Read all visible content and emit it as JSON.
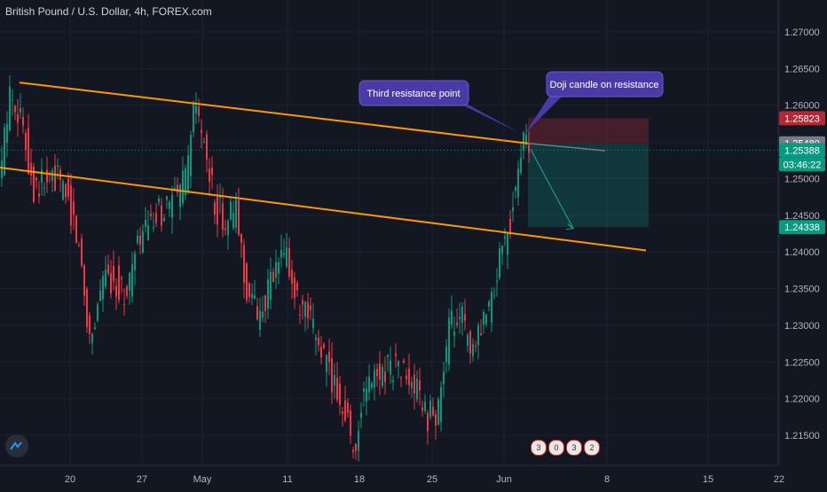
{
  "header": {
    "title": "British Pound / U.S. Dollar, 4h, FOREX.com"
  },
  "ideas": {
    "badges": [
      "3",
      "0",
      "3",
      "2"
    ]
  },
  "chart_data": {
    "type": "candlestick",
    "title": "British Pound / U.S. Dollar, 4h, FOREX.com",
    "y_range": [
      1.2112,
      1.2768
    ],
    "y_ticks": [
      "1.27000",
      "1.26500",
      "1.26000",
      "1.25500",
      "1.25000",
      "1.24500",
      "1.24000",
      "1.23500",
      "1.23000",
      "1.22500",
      "1.22000",
      "1.21500"
    ],
    "x_ticks": [
      "20",
      "27",
      "May",
      "11",
      "18",
      "25",
      "Jun",
      "8",
      "15",
      "22"
    ],
    "price_labels": [
      {
        "value": "1.25823",
        "color": "#b22833"
      },
      {
        "value": "1.25480",
        "color": "#787b86"
      },
      {
        "value": "1.25388",
        "color": "#089981"
      },
      {
        "value": "03:46:22",
        "color": "#089981"
      },
      {
        "value": "1.24338",
        "color": "#089981"
      }
    ],
    "annotations": [
      {
        "text": "Third resistance point"
      },
      {
        "text": "Doji candle on resistance"
      }
    ],
    "trendlines": [
      {
        "name": "upper resistance",
        "from": 1.263,
        "to": 1.2538
      },
      {
        "name": "lower support",
        "from": 1.2515,
        "to": 1.2402
      }
    ],
    "position": {
      "type": "short",
      "stop": 1.25823,
      "entry": 1.2548,
      "target": 1.24338
    },
    "anchors": [
      [
        0,
        1.248
      ],
      [
        14,
        1.2625
      ],
      [
        26,
        1.258
      ],
      [
        40,
        1.249
      ],
      [
        52,
        1.2495
      ],
      [
        66,
        1.25
      ],
      [
        80,
        1.247
      ],
      [
        92,
        1.24
      ],
      [
        104,
        1.2275
      ],
      [
        116,
        1.236
      ],
      [
        130,
        1.2365
      ],
      [
        144,
        1.234
      ],
      [
        160,
        1.242
      ],
      [
        172,
        1.2435
      ],
      [
        186,
        1.246
      ],
      [
        200,
        1.247
      ],
      [
        212,
        1.25
      ],
      [
        222,
        1.2605
      ],
      [
        232,
        1.254
      ],
      [
        244,
        1.2465
      ],
      [
        256,
        1.2445
      ],
      [
        268,
        1.2455
      ],
      [
        280,
        1.235
      ],
      [
        292,
        1.2315
      ],
      [
        304,
        1.2345
      ],
      [
        316,
        1.2385
      ],
      [
        326,
        1.2395
      ],
      [
        338,
        1.232
      ],
      [
        350,
        1.2305
      ],
      [
        362,
        1.2275
      ],
      [
        376,
        1.2225
      ],
      [
        390,
        1.219
      ],
      [
        402,
        1.2125
      ],
      [
        410,
        1.22
      ],
      [
        422,
        1.2225
      ],
      [
        436,
        1.2245
      ],
      [
        448,
        1.2245
      ],
      [
        460,
        1.223
      ],
      [
        472,
        1.2205
      ],
      [
        484,
        1.2175
      ],
      [
        496,
        1.2185
      ],
      [
        508,
        1.229
      ],
      [
        520,
        1.2325
      ],
      [
        532,
        1.2255
      ],
      [
        544,
        1.2285
      ],
      [
        556,
        1.233
      ],
      [
        566,
        1.24
      ],
      [
        576,
        1.2435
      ],
      [
        584,
        1.2495
      ],
      [
        592,
        1.2555
      ],
      [
        598,
        1.2545
      ]
    ]
  }
}
